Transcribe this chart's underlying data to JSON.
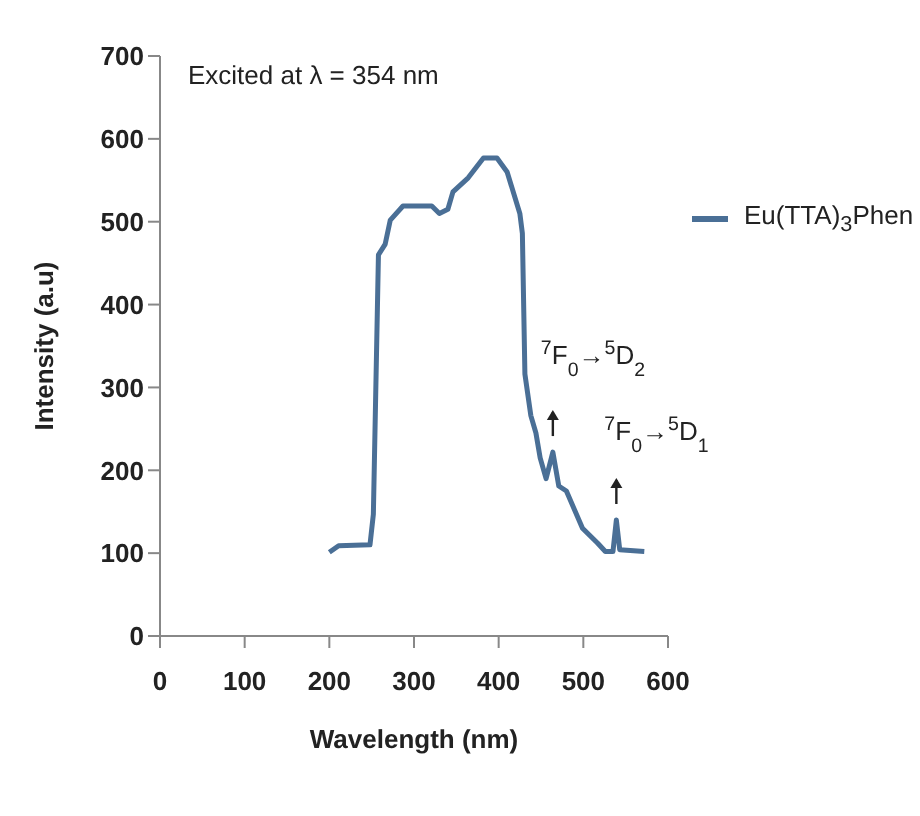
{
  "chart_data": {
    "type": "line",
    "xlabel": "Wavelength (nm)",
    "ylabel": "Intensity (a.u)",
    "xlim": [
      0,
      600
    ],
    "xticks": [
      0,
      100,
      200,
      300,
      400,
      500,
      600
    ],
    "ylim": [
      0,
      700
    ],
    "yticks": [
      0,
      100,
      200,
      300,
      400,
      500,
      600,
      700
    ],
    "grid": false,
    "legend": "top right",
    "marker": "none",
    "line_style": "solid",
    "series": [
      {
        "name": "Eu(TTA)$_{3}$Phen",
        "color": "#4a6f96",
        "x": [
          200,
          211,
          248,
          252,
          258,
          266,
          272,
          287,
          321,
          330,
          340,
          346,
          364,
          382,
          398,
          410,
          425,
          428,
          431,
          438,
          444,
          449,
          456,
          464,
          471,
          480,
          499,
          517,
          526,
          535,
          539,
          543,
          572
        ],
        "values": [
          101,
          109,
          110,
          147,
          460,
          473,
          502,
          519,
          519,
          510,
          515,
          536,
          553,
          577,
          577,
          560,
          510,
          486,
          316,
          266,
          245,
          215,
          190,
          222,
          181,
          175,
          130,
          112,
          102,
          102,
          140,
          104,
          102
        ]
      }
    ],
    "annotations": [
      "Excited at λ = 354 nm",
      {
        "text": "$^{7}$F$_{0}$→$^{5}$D$_{2}$",
        "x": 464,
        "y": 222
      },
      {
        "text": "$^{7}$F$_{0}$→$^{5}$D$_{1}$",
        "x": 539,
        "y": 140
      }
    ]
  }
}
